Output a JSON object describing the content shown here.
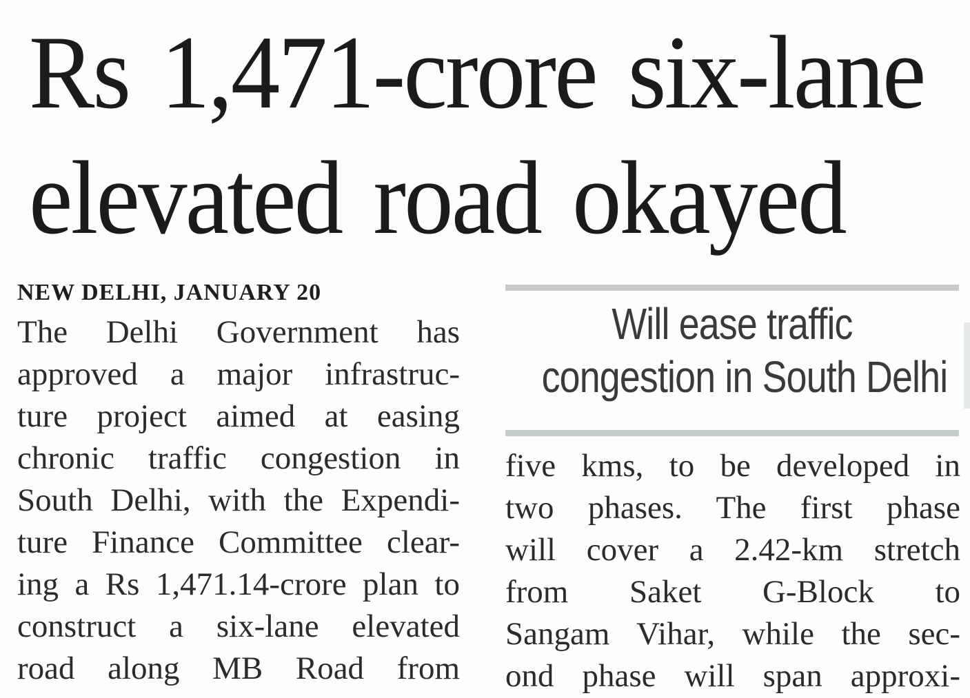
{
  "article": {
    "headline": {
      "line1": "Rs 1,471-crore six-lane",
      "line2": "elevated road okayed"
    },
    "dateline": "NEW DELHI, JANUARY 20",
    "left_column": {
      "lines": [
        "The Delhi Government has",
        "approved a major infrastruc-",
        "ture project aimed at easing",
        "chronic traffic congestion in",
        "South Delhi, with the Expendi-",
        "ture Finance Committee clear-",
        "ing a Rs 1,471.14-crore plan to",
        "construct a six-lane elevated",
        "road along MB Road from"
      ]
    },
    "pull_quote": {
      "line1": "Will ease traffic",
      "line2": "congestion in South Delhi"
    },
    "right_column": {
      "lines": [
        "five kms, to be developed in",
        "two phases. The first phase",
        "will cover a 2.42-km stretch",
        "from Saket G-Block to",
        "Sangam Vihar, while the sec-",
        "ond phase will span approxi-"
      ]
    }
  },
  "colors": {
    "background": "#fdfdfc",
    "headline_text": "#1b1b1d",
    "body_text": "#2b2b2b",
    "pull_quote_text": "#3a3a3a",
    "rule": "#c7ccc9"
  }
}
